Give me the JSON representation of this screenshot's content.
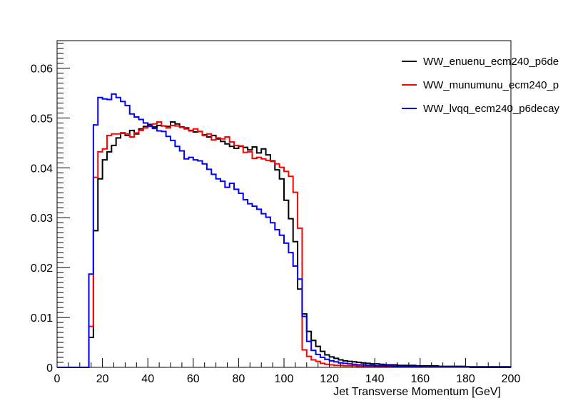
{
  "chart_data": {
    "type": "line",
    "style": "step-histogram",
    "title": "",
    "xlabel": "Jet Transverse Momentum [GeV]",
    "ylabel": "",
    "xlim": [
      0,
      200
    ],
    "ylim": [
      0,
      0.0655
    ],
    "bin_width": 2,
    "x_ticks": [
      0,
      20,
      40,
      60,
      80,
      100,
      120,
      140,
      160,
      180,
      200
    ],
    "y_ticks": [
      0,
      0.01,
      0.02,
      0.03,
      0.04,
      0.05,
      0.06
    ],
    "y_tick_labels": [
      "0",
      "0.01",
      "0.02",
      "0.03",
      "0.04",
      "0.05",
      "0.06"
    ],
    "grid": false,
    "legend_position": "top-right",
    "series": [
      {
        "name": "WW_enuenu_ecm240_p6de",
        "color": "#000000",
        "values": [
          0,
          0,
          0,
          0,
          0,
          0,
          0,
          0.006,
          0.0274,
          0.0378,
          0.0416,
          0.0432,
          0.0445,
          0.046,
          0.047,
          0.0465,
          0.0475,
          0.0468,
          0.0478,
          0.0483,
          0.0487,
          0.0482,
          0.0485,
          0.0484,
          0.0483,
          0.0492,
          0.0488,
          0.0482,
          0.048,
          0.0475,
          0.0472,
          0.0473,
          0.0466,
          0.0462,
          0.0465,
          0.0458,
          0.0453,
          0.0448,
          0.0443,
          0.0439,
          0.0443,
          0.0441,
          0.0436,
          0.0442,
          0.043,
          0.0438,
          0.0426,
          0.0414,
          0.0396,
          0.0378,
          0.0335,
          0.0298,
          0.0252,
          0.0157,
          0.0107,
          0.0072,
          0.0054,
          0.0042,
          0.0032,
          0.0025,
          0.0021,
          0.0018,
          0.0015,
          0.0013,
          0.0012,
          0.0011,
          0.001,
          0.0009,
          0.0008,
          0.0007,
          0.0007,
          0.0006,
          0.0005,
          0.0005,
          0.0005,
          0.0004,
          0.0004,
          0.0004,
          0.0004,
          0.0003,
          0.0003,
          0.0003,
          0.0003,
          0.0003,
          0.0002,
          0.0002,
          0.0002,
          0.0002,
          0.0002,
          0.0002,
          0.0001,
          0.0001,
          0.0001,
          0.0001,
          0.0001,
          0.0001,
          0.0001,
          0.0001,
          0.0001,
          0.0001
        ]
      },
      {
        "name": "WW_munumunu_ecm240_p",
        "color": "#ff0000",
        "values": [
          0,
          0,
          0,
          0,
          0,
          0,
          0,
          0.0082,
          0.0381,
          0.0432,
          0.0438,
          0.0465,
          0.0468,
          0.0468,
          0.0469,
          0.0468,
          0.0462,
          0.047,
          0.0475,
          0.048,
          0.0483,
          0.0488,
          0.0492,
          0.0484,
          0.048,
          0.0485,
          0.0484,
          0.0481,
          0.0478,
          0.0474,
          0.0478,
          0.0473,
          0.0465,
          0.0468,
          0.0456,
          0.046,
          0.0458,
          0.0462,
          0.0452,
          0.0445,
          0.0444,
          0.0431,
          0.0432,
          0.0419,
          0.0421,
          0.0418,
          0.0415,
          0.0413,
          0.0408,
          0.0401,
          0.0393,
          0.0383,
          0.0351,
          0.0279,
          0.0035,
          0.0022,
          0.0015,
          0.0012,
          0.0008,
          0.0006,
          0.0005,
          0.0004,
          0.0004,
          0.0003,
          0.0003,
          0.0003,
          0.0002,
          0.0002,
          0.0002,
          0.0002,
          0.0002,
          0.0002,
          0.0001,
          0.0001,
          0.0001,
          0.0001,
          0.0001,
          0.0001,
          0.0001,
          0.0001,
          0.0001,
          0.0001,
          0.0001,
          0.0001,
          0.0001,
          0.0001,
          0.0001,
          0.0001,
          0.0001,
          0.0001,
          0.0001,
          0,
          0,
          0,
          0,
          0,
          0,
          0,
          0,
          0
        ]
      },
      {
        "name": "WW_lvqq_ecm240_p6decay",
        "color": "#0000ff",
        "values": [
          0,
          0,
          0,
          0,
          0,
          0,
          0,
          0.0187,
          0.0486,
          0.0541,
          0.0538,
          0.0537,
          0.0548,
          0.0541,
          0.0533,
          0.0525,
          0.0508,
          0.0502,
          0.0497,
          0.049,
          0.0484,
          0.0479,
          0.0474,
          0.0473,
          0.0463,
          0.0455,
          0.0443,
          0.0434,
          0.0418,
          0.0421,
          0.0416,
          0.0414,
          0.0408,
          0.0397,
          0.0387,
          0.0378,
          0.0373,
          0.0361,
          0.0369,
          0.0357,
          0.0349,
          0.0336,
          0.0328,
          0.0323,
          0.0317,
          0.0308,
          0.0301,
          0.029,
          0.0276,
          0.0265,
          0.0249,
          0.023,
          0.0203,
          0.0177,
          0.0102,
          0.0052,
          0.0034,
          0.0026,
          0.002,
          0.0016,
          0.0013,
          0.0011,
          0.0009,
          0.0008,
          0.0007,
          0.0006,
          0.0005,
          0.0005,
          0.0004,
          0.0004,
          0.0003,
          0.0003,
          0.0003,
          0.0003,
          0.0002,
          0.0002,
          0.0002,
          0.0002,
          0.0002,
          0.0002,
          0.0001,
          0.0001,
          0.0001,
          0.0001,
          0.0001,
          0.0001,
          0.0001,
          0.0001,
          0.0001,
          0.0001,
          0.0001,
          0,
          0,
          0,
          0,
          0,
          0,
          0,
          0,
          0
        ]
      }
    ]
  }
}
